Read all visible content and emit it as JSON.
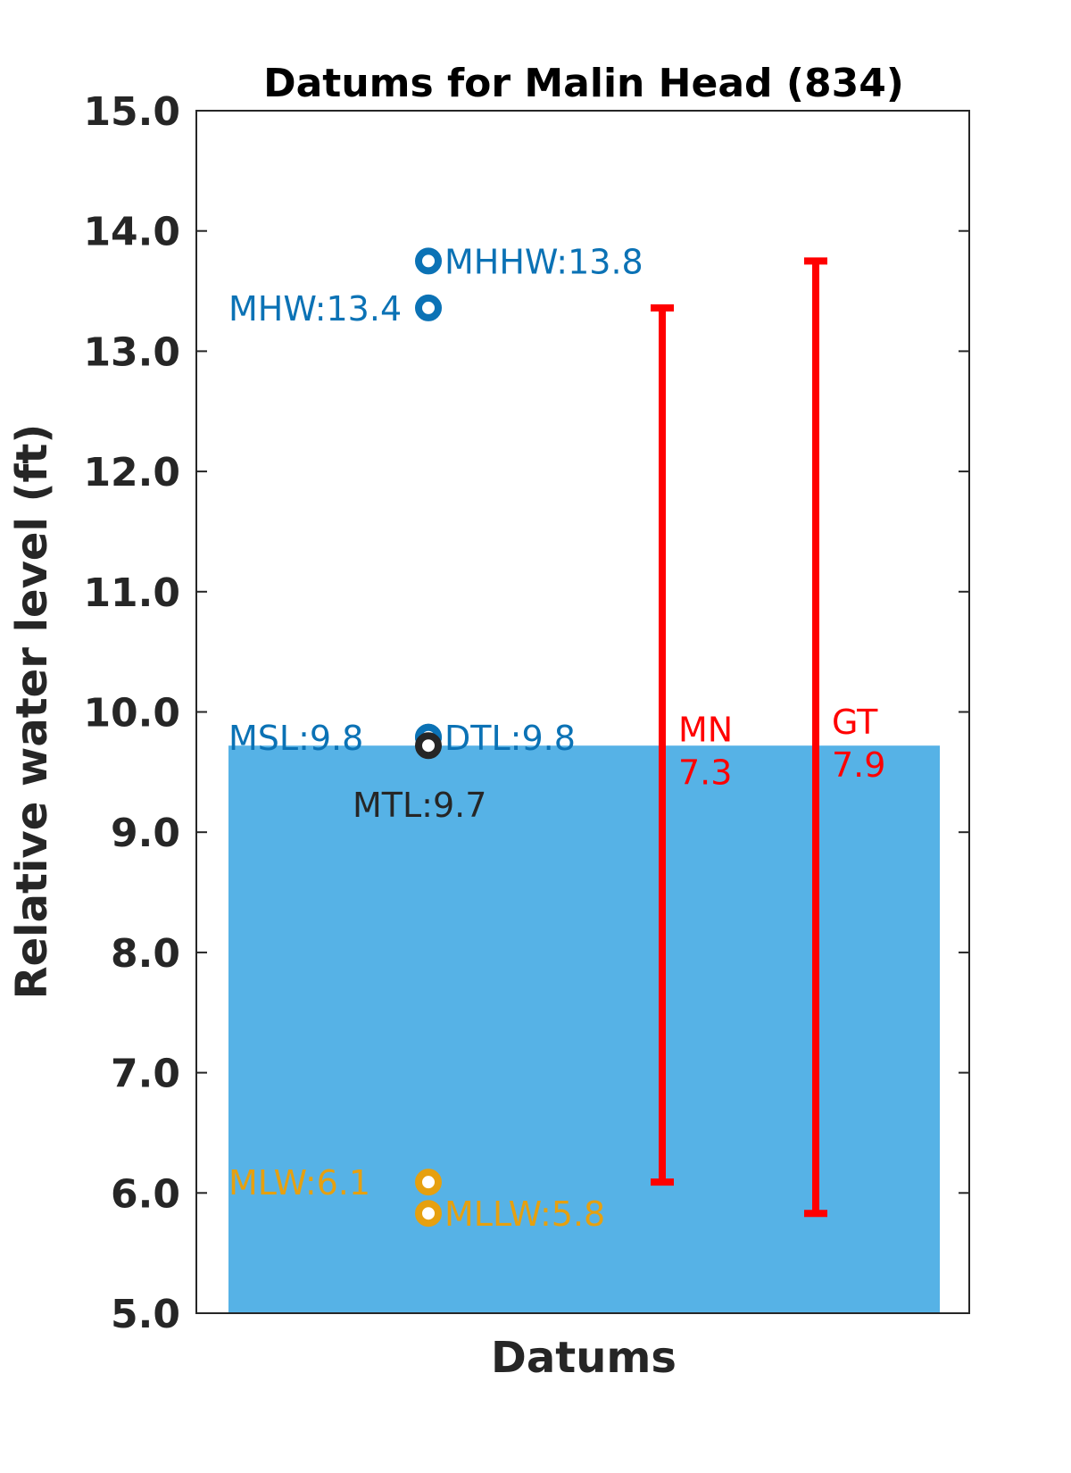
{
  "chart_data": {
    "type": "scatter",
    "title": "Datums for Malin Head (834)",
    "xlabel": "Datums",
    "ylabel": "Relative water level (ft)",
    "ylim": [
      5.0,
      15.0
    ],
    "yticks": [
      "5.0",
      "6.0",
      "7.0",
      "8.0",
      "9.0",
      "10.0",
      "11.0",
      "12.0",
      "13.0",
      "14.0",
      "15.0"
    ],
    "water_level": 9.72,
    "water_color": "#56b2e6",
    "datums": [
      {
        "name": "MHHW",
        "value": 13.75,
        "label": "MHHW:13.8",
        "color": "#0b72b5",
        "side": "right"
      },
      {
        "name": "MHW",
        "value": 13.36,
        "label": "MHW:13.4",
        "color": "#0b72b5",
        "side": "left"
      },
      {
        "name": "MSL",
        "value": 9.79,
        "label": "MSL:9.8",
        "color": "#0b72b5",
        "side": "left"
      },
      {
        "name": "DTL",
        "value": 9.79,
        "label": "DTL:9.8",
        "color": "#0b72b5",
        "side": "right"
      },
      {
        "name": "MTL",
        "value": 9.72,
        "label": "MTL:9.7",
        "color": "#262626",
        "side": "below"
      },
      {
        "name": "MLW",
        "value": 6.09,
        "label": "MLW:6.1",
        "color": "#e6a00f",
        "side": "left"
      },
      {
        "name": "MLLW",
        "value": 5.83,
        "label": "MLLW:5.8",
        "color": "#e6a00f",
        "side": "right"
      }
    ],
    "ranges": [
      {
        "name": "MN",
        "value_label": "7.3",
        "low": 6.09,
        "high": 13.36,
        "color": "#ff0000"
      },
      {
        "name": "GT",
        "value_label": "7.9",
        "low": 5.83,
        "high": 13.75,
        "color": "#ff0000"
      }
    ],
    "grid": false
  }
}
